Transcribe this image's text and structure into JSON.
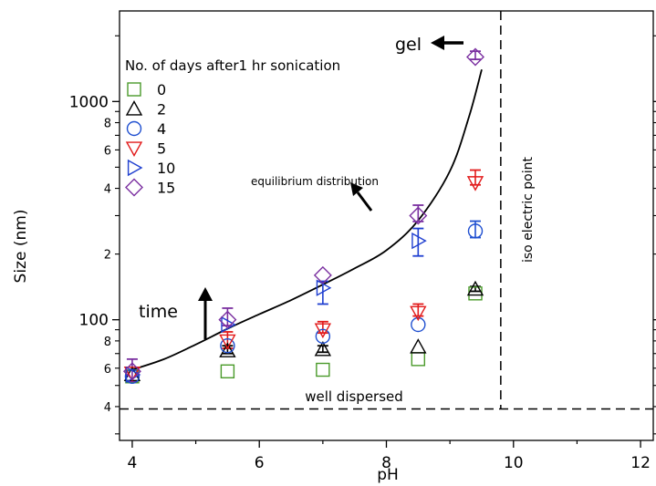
{
  "chart_data": {
    "type": "scatter",
    "xlabel": "pH",
    "ylabel": "Size (nm)",
    "xlim": [
      3.8,
      12.2
    ],
    "ylim": [
      28,
      2600
    ],
    "yscale": "log",
    "x_ticks": [
      4,
      6,
      8,
      10,
      12
    ],
    "y_major_ticks": [
      100,
      1000
    ],
    "y_major_labels": [
      "100",
      "1000"
    ],
    "y_minor_ticks": [
      40,
      60,
      80,
      200,
      400,
      600,
      800
    ],
    "y_minor_labels": [
      "4",
      "6",
      "8",
      "2",
      "4",
      "6",
      "8"
    ],
    "grid": false,
    "legend_title": "No. of days after1 hr sonication",
    "legend_placement": "top-left",
    "series": [
      {
        "name": "0",
        "marker": "square",
        "color": "#4a9a2a",
        "points": [
          [
            4,
            55
          ],
          [
            5.5,
            58
          ],
          [
            7,
            59
          ],
          [
            8.5,
            66
          ],
          [
            9.4,
            132
          ]
        ]
      },
      {
        "name": "2",
        "marker": "triangle-up",
        "color": "#000000",
        "points": [
          [
            4,
            56
          ],
          [
            5.5,
            72
          ],
          [
            7,
            73
          ],
          [
            8.5,
            75
          ],
          [
            9.4,
            138
          ]
        ]
      },
      {
        "name": "4",
        "marker": "circle",
        "color": "#1f4fd0",
        "points": [
          [
            4,
            55
          ],
          [
            5.5,
            76
          ],
          [
            7,
            84
          ],
          [
            8.5,
            95
          ],
          [
            9.4,
            255
          ]
        ]
      },
      {
        "name": "5",
        "marker": "triangle-down",
        "color": "#e21a1a",
        "points": [
          [
            4,
            57
          ],
          [
            5.5,
            80
          ],
          [
            7,
            90
          ],
          [
            8.5,
            108
          ],
          [
            9.4,
            425
          ]
        ]
      },
      {
        "name": "10",
        "marker": "triangle-right",
        "color": "#1f3fd0",
        "points": [
          [
            4,
            56
          ],
          [
            5.5,
            95
          ],
          [
            7,
            140
          ],
          [
            8.5,
            230
          ]
        ]
      },
      {
        "name": "15",
        "marker": "diamond",
        "color": "#7a2fa0",
        "points": [
          [
            4,
            58
          ],
          [
            5.5,
            100
          ],
          [
            7,
            160
          ],
          [
            8.5,
            300
          ],
          [
            9.4,
            1600
          ]
        ]
      }
    ],
    "error_bars": [
      {
        "series": "15",
        "x": 4,
        "low": 52,
        "high": 66
      },
      {
        "series": "5",
        "x": 5.5,
        "low": 74,
        "high": 88
      },
      {
        "series": "15",
        "x": 5.5,
        "low": 94,
        "high": 113
      },
      {
        "series": "2",
        "x": 5.5,
        "low": 70,
        "high": 76
      },
      {
        "series": "10",
        "x": 7,
        "low": 118,
        "high": 150
      },
      {
        "series": "5",
        "x": 7,
        "low": 87,
        "high": 98
      },
      {
        "series": "2",
        "x": 7,
        "low": 71,
        "high": 76
      },
      {
        "series": "5",
        "x": 8.5,
        "low": 104,
        "high": 118
      },
      {
        "series": "10",
        "x": 8.5,
        "low": 196,
        "high": 262
      },
      {
        "series": "15",
        "x": 8.5,
        "low": 282,
        "high": 335
      },
      {
        "series": "5",
        "x": 9.4,
        "low": 415,
        "high": 485
      },
      {
        "series": "4",
        "x": 9.4,
        "low": 238,
        "high": 283
      },
      {
        "series": "2",
        "x": 9.4,
        "low": 135,
        "high": 142
      },
      {
        "series": "15",
        "x": 9.4,
        "low": 1560,
        "high": 1700
      }
    ],
    "trend_curve": [
      [
        4,
        59
      ],
      [
        4.5,
        66
      ],
      [
        5,
        77
      ],
      [
        5.5,
        91
      ],
      [
        6,
        106
      ],
      [
        6.5,
        123
      ],
      [
        7,
        145
      ],
      [
        7.5,
        172
      ],
      [
        8,
        208
      ],
      [
        8.5,
        285
      ],
      [
        9,
        480
      ],
      [
        9.3,
        850
      ],
      [
        9.5,
        1400
      ]
    ],
    "well_dispersed_level": 39,
    "iso_electric_point_ph": 9.8,
    "annotations": {
      "gel": "gel",
      "time": "time",
      "equilibrium": "equilibrium distribution",
      "well_dispersed": "well dispersed",
      "iso_electric": "iso electric point"
    }
  }
}
